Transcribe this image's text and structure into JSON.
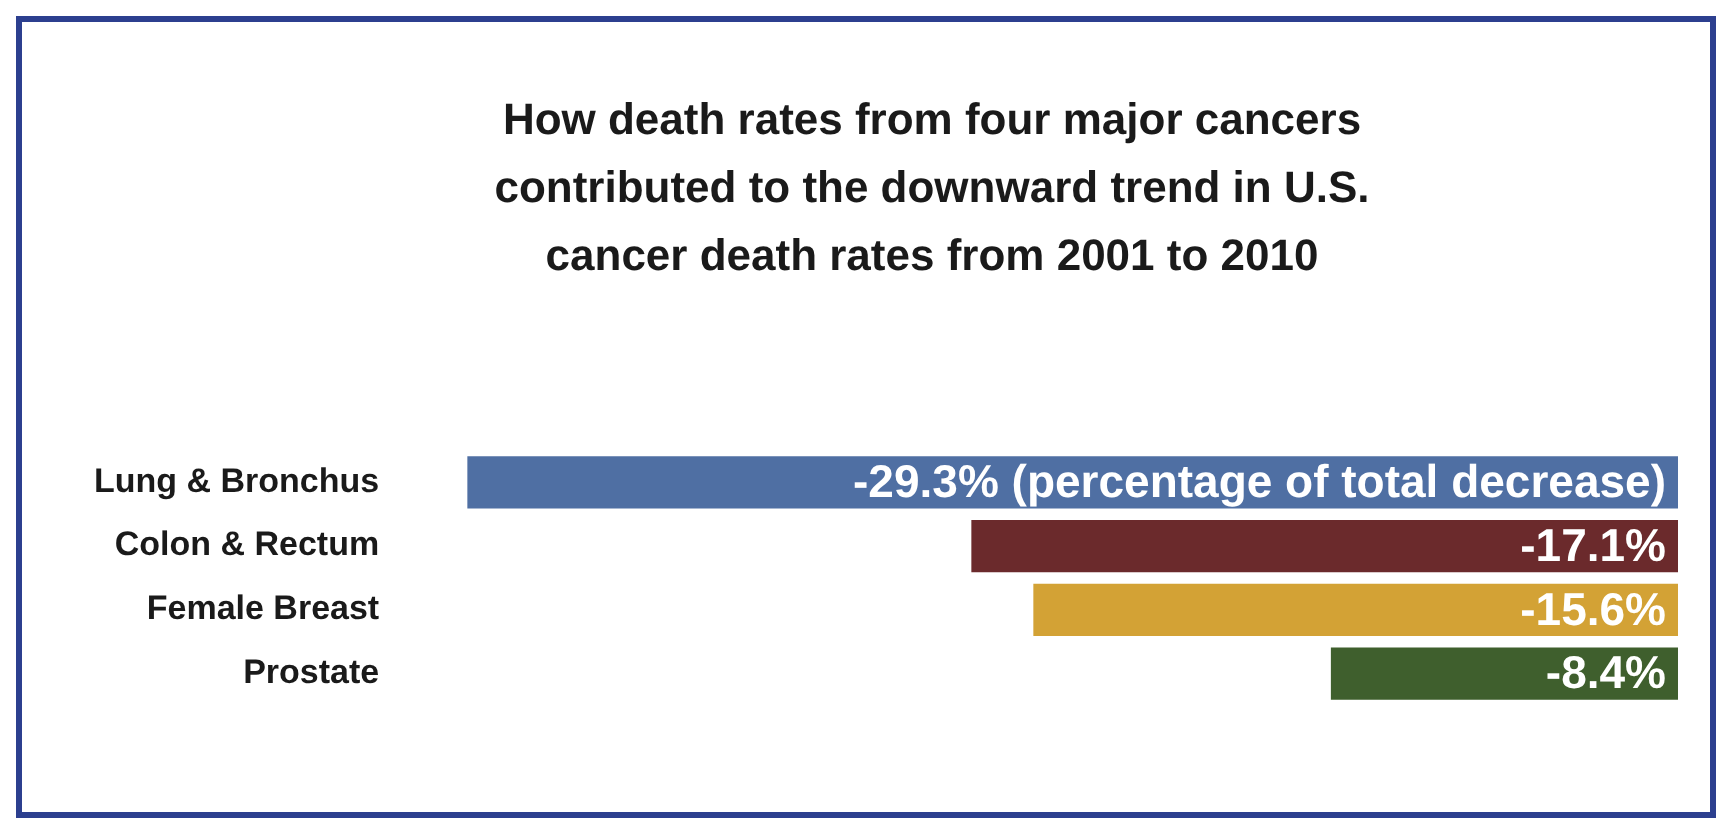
{
  "chart_data": {
    "type": "bar",
    "orientation": "horizontal",
    "title": "How death rates from four major cancers contributed to the downward trend in U.S. cancer death rates from 2001 to 2010",
    "categories": [
      "Lung & Bronchus",
      "Colon & Rectum",
      "Female Breast",
      "Prostate"
    ],
    "values": [
      -29.3,
      -17.1,
      -15.6,
      -8.4
    ],
    "colors": [
      "#4f6fa3",
      "#6b2a2c",
      "#d3a235",
      "#3f5f2d"
    ],
    "value_labels": [
      "-29.3% (percentage of total decrease)",
      "-17.1%",
      "-15.6%",
      "-8.4%"
    ],
    "legend": false
  }
}
